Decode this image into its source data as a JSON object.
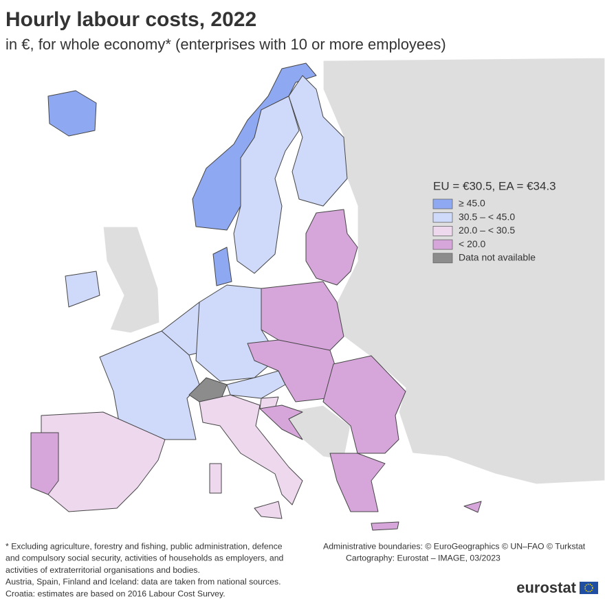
{
  "header": {
    "title": "Hourly labour costs, 2022",
    "subtitle": "in €, for whole economy* (enterprises with 10 or more employees)"
  },
  "legend": {
    "title": "EU = €30.5, EA = €34.3",
    "items": [
      {
        "label": "≥ 45.0",
        "color": "#8fa8f2"
      },
      {
        "label": "30.5 – < 45.0",
        "color": "#cfd9f9"
      },
      {
        "label": "20.0 – < 30.5",
        "color": "#eed8ee"
      },
      {
        "label": "< 20.0",
        "color": "#d6a6da"
      },
      {
        "label": "Data not available",
        "color": "#8c8c8c"
      }
    ]
  },
  "footnotes": [
    "* Excluding agriculture, forestry and fishing, public administration, defence",
    "and compulsory social security, activities of households as employers, and",
    "activities of extraterritorial organisations and bodies.",
    "Austria, Spain, Finland and Iceland: data are taken from national sources.",
    "Croatia: estimates are based on 2016 Labour Cost Survey."
  ],
  "credits": [
    "Administrative boundaries: © EuroGeographics © UN–FAO © Turkstat",
    "Cartography: Eurostat – IMAGE, 03/2023"
  ],
  "logo": "eurostat"
}
